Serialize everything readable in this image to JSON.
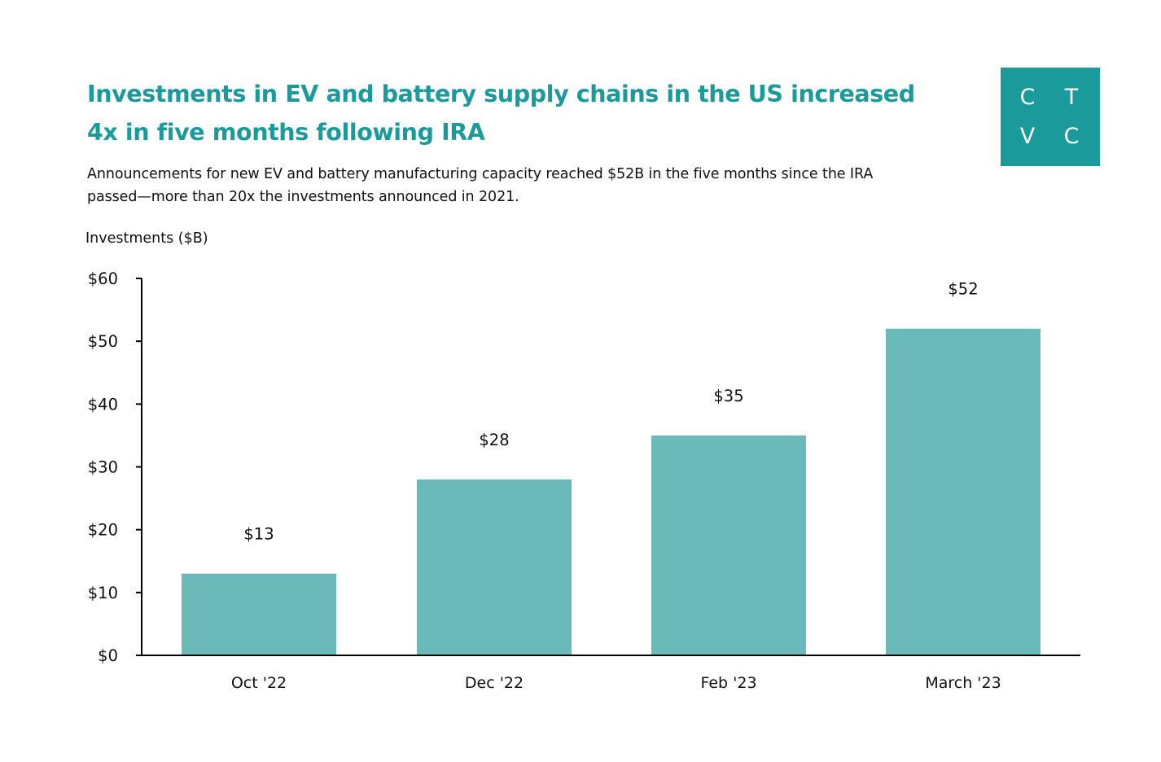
{
  "title": "Investments in EV and battery supply chains in the US increased 4x in five months following IRA",
  "subtitle": "Announcements for new EV and battery manufacturing capacity reached $52B in the five months since the IRA passed—more than 20x the investments announced in 2021.",
  "logo": {
    "letters": [
      "C",
      "T",
      "V",
      "C"
    ],
    "color": "#1a9a9b"
  },
  "chart_data": {
    "type": "bar",
    "categories": [
      "Oct '22",
      "Dec '22",
      "Feb '23",
      "March '23"
    ],
    "values": [
      13,
      28,
      35,
      52
    ],
    "data_labels": [
      "$13",
      "$28",
      "$35",
      "$52"
    ],
    "ylabel": "Investments ($B)",
    "xlabel": "",
    "ylim": [
      0,
      60
    ],
    "yticks": [
      0,
      10,
      20,
      30,
      40,
      50,
      60
    ],
    "ytick_labels": [
      "$0",
      "$10",
      "$20",
      "$30",
      "$40",
      "$50",
      "$60"
    ],
    "bar_color": "#6bbab9",
    "grid": false,
    "legend": "none"
  }
}
